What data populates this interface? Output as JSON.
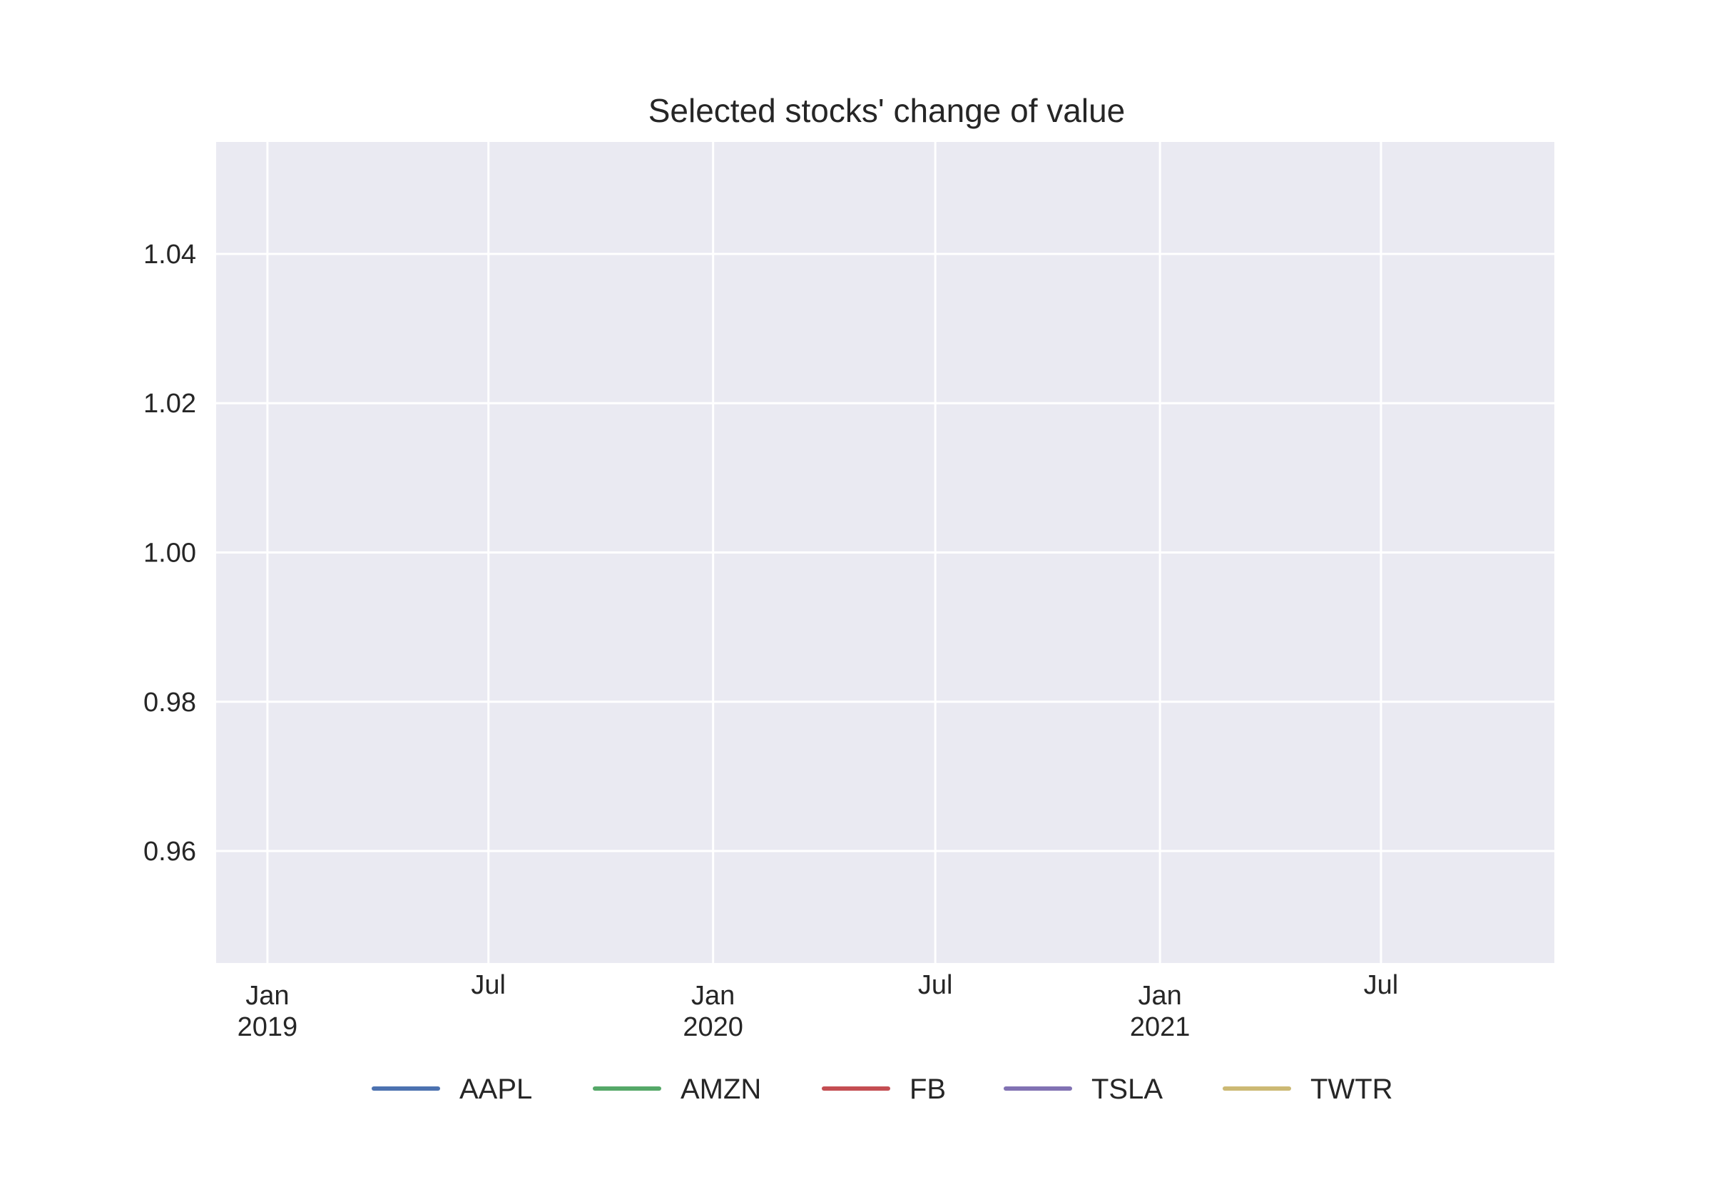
{
  "chart_data": {
    "type": "line",
    "title": "Selected stocks' change of value",
    "xlabel": "",
    "ylabel": "",
    "xlim": [
      "2018-11-20",
      "2021-11-20"
    ],
    "ylim": [
      0.945,
      1.055
    ],
    "y_ticks": [
      {
        "value": 0.96,
        "label": "0.96"
      },
      {
        "value": 0.98,
        "label": "0.98"
      },
      {
        "value": 1.0,
        "label": "1.00"
      },
      {
        "value": 1.02,
        "label": "1.02"
      },
      {
        "value": 1.04,
        "label": "1.04"
      }
    ],
    "x_ticks": [
      {
        "date": "2019-01-01",
        "label": "Jan",
        "sublabel": "2019",
        "major": true
      },
      {
        "date": "2019-07-01",
        "label": "Jul",
        "sublabel": "",
        "major": false
      },
      {
        "date": "2020-01-01",
        "label": "Jan",
        "sublabel": "2020",
        "major": true
      },
      {
        "date": "2020-07-01",
        "label": "Jul",
        "sublabel": "",
        "major": false
      },
      {
        "date": "2021-01-01",
        "label": "Jan",
        "sublabel": "2021",
        "major": true
      },
      {
        "date": "2021-07-01",
        "label": "Jul",
        "sublabel": "",
        "major": false
      }
    ],
    "grid": true,
    "legend_position": "bottom-center",
    "series": [
      {
        "name": "AAPL",
        "color": "#4c72b0",
        "points": []
      },
      {
        "name": "AMZN",
        "color": "#55a868",
        "points": []
      },
      {
        "name": "FB",
        "color": "#c44e52",
        "points": []
      },
      {
        "name": "TSLA",
        "color": "#8172b3",
        "points": []
      },
      {
        "name": "TWTR",
        "color": "#ccb974",
        "points": []
      }
    ],
    "colors": {
      "plot_background": "#eaeaf2",
      "grid": "#ffffff",
      "text": "#262626"
    }
  }
}
